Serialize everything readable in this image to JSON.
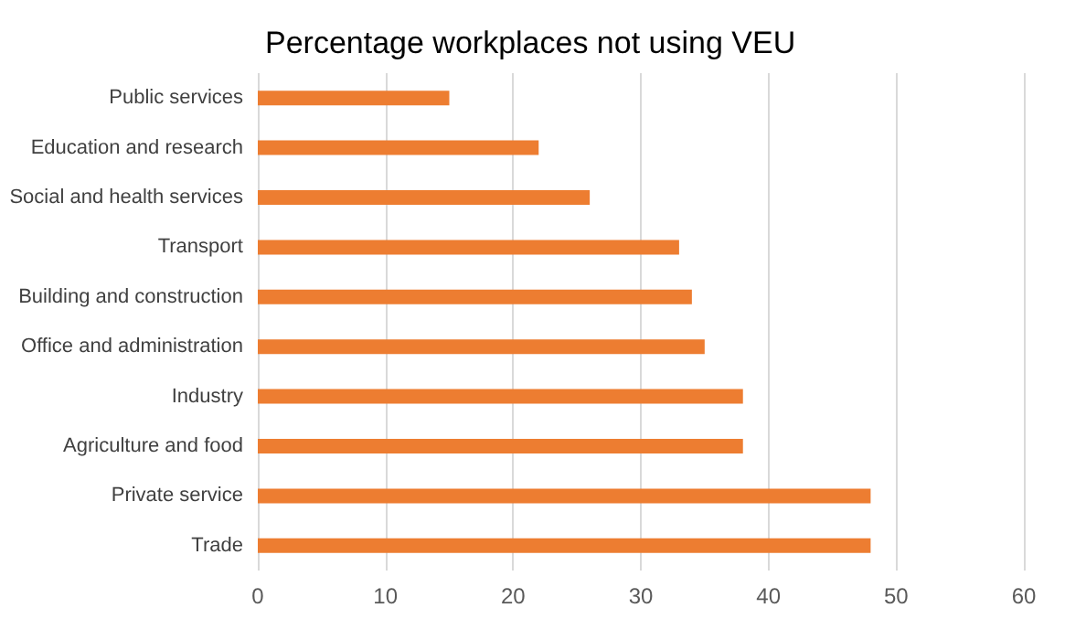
{
  "chart_data": {
    "type": "bar",
    "orientation": "horizontal",
    "title": "Percentage workplaces not using VEU",
    "categories": [
      "Public services",
      "Education and research",
      "Social and health services",
      "Transport",
      "Building and construction",
      "Office and administration",
      "Industry",
      "Agriculture and food",
      "Private service",
      "Trade"
    ],
    "values": [
      15,
      22,
      26,
      33,
      34,
      35,
      38,
      38,
      48,
      48
    ],
    "color": "#ed7d31",
    "xlim": [
      0,
      60
    ],
    "xticks": [
      0,
      10,
      20,
      30,
      40,
      50,
      60
    ],
    "grid": "x"
  }
}
